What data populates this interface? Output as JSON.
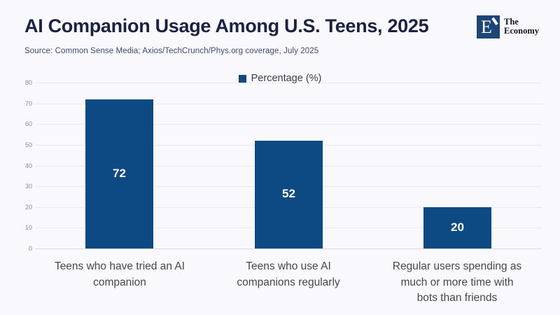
{
  "header": {
    "title": "AI Companion Usage Among U.S. Teens, 2025",
    "source": "Source: Common Sense Media; Axios/TechCrunch/Phys.org coverage, July 2025"
  },
  "logo": {
    "letter": "E",
    "name_line1": "The",
    "name_line2": "Economy"
  },
  "colors": {
    "background": "#f8f8fd",
    "bar": "#0d4a84",
    "title_text": "#1b2142",
    "logo_square": "#1d4678"
  },
  "chart_data": {
    "type": "bar",
    "title": "AI Companion Usage Among U.S. Teens, 2025",
    "legend": "Percentage (%)",
    "legend_position": "top-center",
    "categories": [
      "Teens who have tried an AI companion",
      "Teens who use AI companions regularly",
      "Regular users spending as much or more time with bots than friends"
    ],
    "values": [
      72,
      52,
      20
    ],
    "value_labels": [
      "72",
      "52",
      "20"
    ],
    "xlabel": "",
    "ylabel": "",
    "ylim": [
      0,
      80
    ],
    "yticks": [
      0,
      10,
      20,
      30,
      40,
      50,
      60,
      70,
      80
    ],
    "grid": true,
    "bar_color": "#0d4a84",
    "value_label_color": "#ffffff"
  }
}
